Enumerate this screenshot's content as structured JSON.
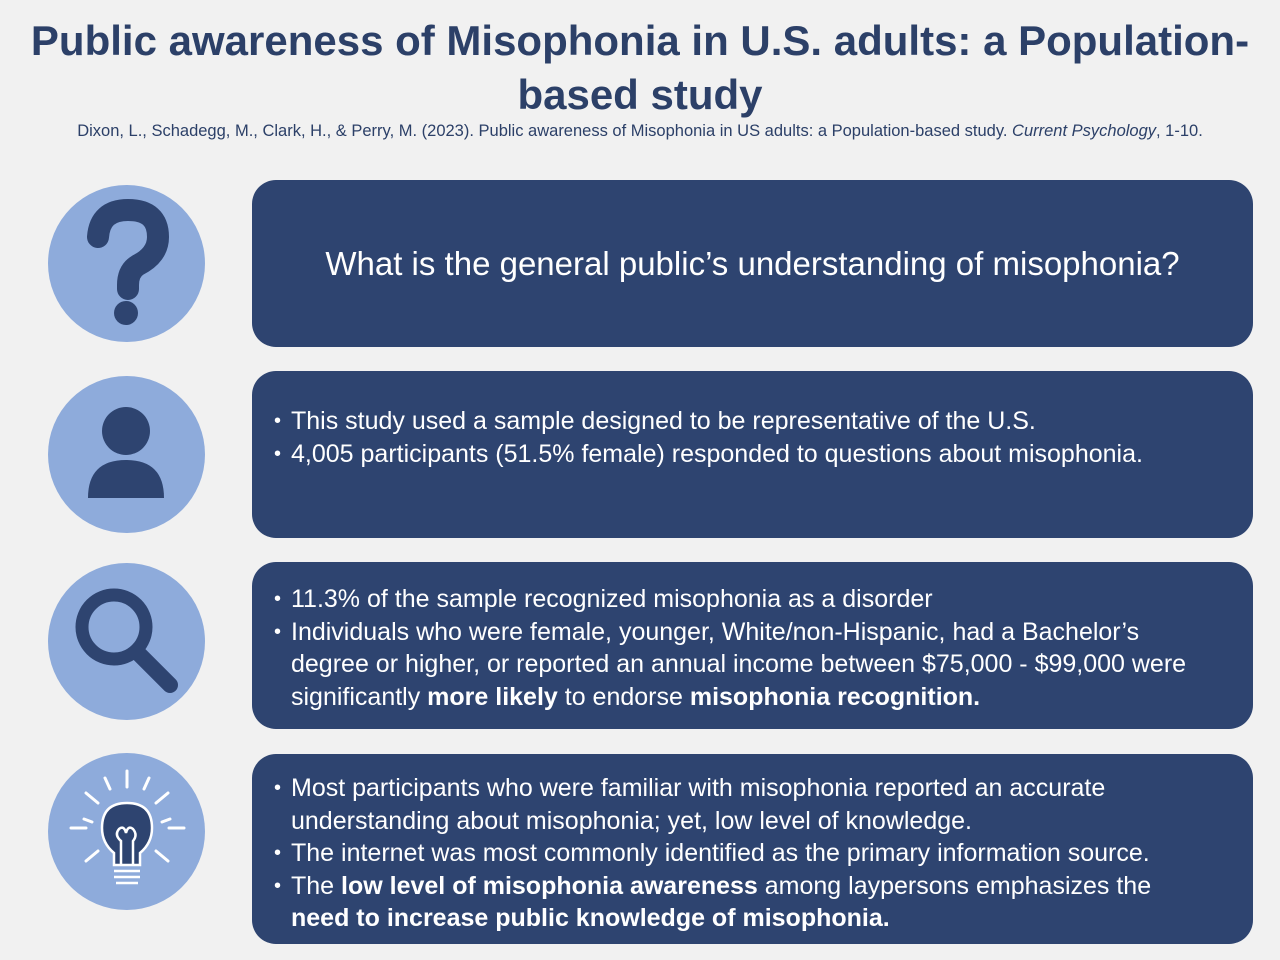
{
  "title": "Public awareness of Misophonia in U.S. adults: a Population-based study",
  "citation": {
    "main": "Dixon, L., Schadegg, M., Clark, H., & Perry, M. (2023). Public awareness of Misophonia in US adults: a Population-based study. ",
    "journal": "Current Psychology",
    "pages": ", 1-10."
  },
  "question": "What is the general public’s understanding of misophonia?",
  "sample": [
    "This study used a sample designed to be representative of the U.S.",
    "4,005 participants (51.5% female) responded to questions about misophonia."
  ],
  "findings": {
    "b1": "11.3% of the sample recognized misophonia as a disorder",
    "b2a": "Individuals who were female, younger, White/non-Hispanic, had a Bachelor’s degree or higher, or reported an annual income between $75,000 - $99,000 were significantly ",
    "b2b": "more likely",
    "b2c": " to endorse ",
    "b2d": "misophonia recognition."
  },
  "conclusions": {
    "b1": "Most participants who were familiar with misophonia reported an accurate understanding about misophonia; yet, low level of knowledge.",
    "b2": "The internet was most commonly identified as the primary information source.",
    "b3a": "The ",
    "b3b": "low level of misophonia awareness",
    "b3c": " among laypersons emphasizes the ",
    "b3d": "need to increase public knowledge of misophonia."
  },
  "colors": {
    "dark": "#2e4470",
    "circle": "#8eabdb",
    "bg": "#f1f1f1"
  }
}
